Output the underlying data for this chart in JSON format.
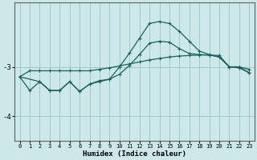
{
  "xlabel": "Humidex (Indice chaleur)",
  "ylabel": "",
  "bg_color": "#cce8e8",
  "grid_color": "#a0c8c8",
  "line_color": "#1a6060",
  "xlim": [
    -0.5,
    23.5
  ],
  "ylim": [
    -4.5,
    -1.7
  ],
  "yticks": [
    -4,
    -3
  ],
  "xticks": [
    0,
    1,
    2,
    3,
    4,
    5,
    6,
    7,
    8,
    9,
    10,
    11,
    12,
    13,
    14,
    15,
    16,
    17,
    18,
    19,
    20,
    21,
    22,
    23
  ],
  "line1_x": [
    0,
    1,
    2,
    3,
    4,
    5,
    6,
    7,
    8,
    9,
    10,
    11,
    12,
    13,
    14,
    15,
    16,
    17,
    18,
    19,
    20,
    21,
    22,
    23
  ],
  "line1_y": [
    -3.2,
    -3.08,
    -3.08,
    -3.08,
    -3.08,
    -3.08,
    -3.08,
    -3.08,
    -3.05,
    -3.02,
    -2.98,
    -2.94,
    -2.9,
    -2.86,
    -2.83,
    -2.8,
    -2.78,
    -2.77,
    -2.76,
    -2.76,
    -2.8,
    -3.0,
    -3.0,
    -3.05
  ],
  "line2_x": [
    0,
    1,
    2,
    3,
    4,
    5,
    6,
    7,
    8,
    9,
    10,
    11,
    12,
    13,
    14,
    15,
    16,
    17,
    18,
    19,
    20,
    21,
    22,
    23
  ],
  "line2_y": [
    -3.2,
    -3.48,
    -3.3,
    -3.48,
    -3.48,
    -3.3,
    -3.5,
    -3.35,
    -3.3,
    -3.25,
    -3.0,
    -2.72,
    -2.42,
    -2.12,
    -2.08,
    -2.12,
    -2.28,
    -2.48,
    -2.68,
    -2.75,
    -2.8,
    -3.0,
    -3.02,
    -3.12
  ],
  "line3_x": [
    0,
    2,
    3,
    4,
    5,
    6,
    7,
    8,
    9,
    10,
    11,
    12,
    13,
    14,
    15,
    16,
    17,
    18,
    19,
    20,
    21,
    22,
    23
  ],
  "line3_y": [
    -3.2,
    -3.3,
    -3.48,
    -3.48,
    -3.3,
    -3.5,
    -3.35,
    -3.28,
    -3.25,
    -3.15,
    -2.97,
    -2.75,
    -2.52,
    -2.48,
    -2.5,
    -2.63,
    -2.73,
    -2.75,
    -2.76,
    -2.77,
    -3.0,
    -3.0,
    -3.12
  ]
}
